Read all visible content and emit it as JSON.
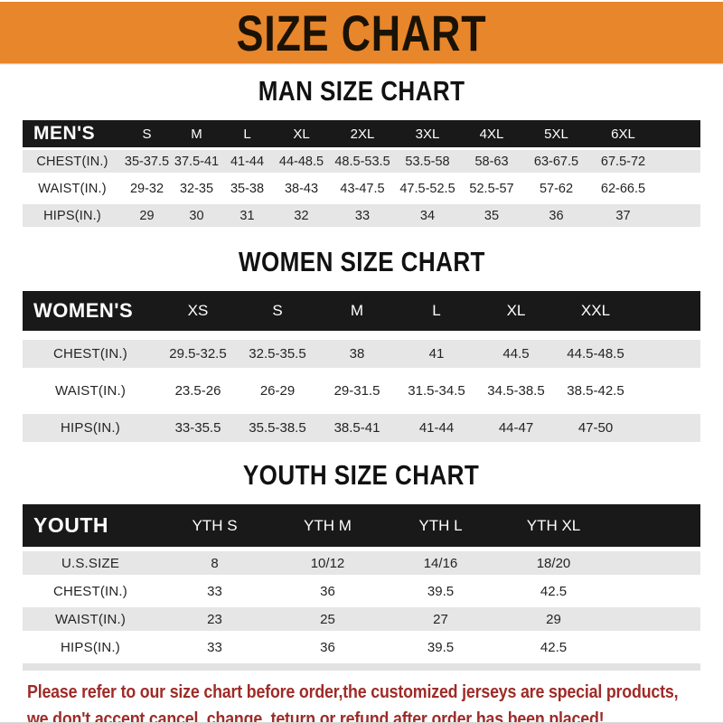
{
  "banner": {
    "title": "SIZE CHART",
    "bg_color": "#E8862B",
    "text_color": "#1B1206"
  },
  "sections": [
    {
      "id": "men",
      "title": "MAN SIZE CHART",
      "corner_label": "MEN'S",
      "columns": [
        "S",
        "M",
        "L",
        "XL",
        "2XL",
        "3XL",
        "4XL",
        "5XL",
        "6XL"
      ],
      "rows": [
        {
          "label": "CHEST(IN.)",
          "values": [
            "35-37.5",
            "37.5-41",
            "41-44",
            "44-48.5",
            "48.5-53.5",
            "53.5-58",
            "58-63",
            "63-67.5",
            "67.5-72"
          ]
        },
        {
          "label": "WAIST(IN.)",
          "values": [
            "29-32",
            "32-35",
            "35-38",
            "38-43",
            "43-47.5",
            "47.5-52.5",
            "52.5-57",
            "57-62",
            "62-66.5"
          ]
        },
        {
          "label": "HIPS(IN.)",
          "values": [
            "29",
            "30",
            "31",
            "32",
            "33",
            "34",
            "35",
            "36",
            "37"
          ]
        }
      ]
    },
    {
      "id": "women",
      "title": "WOMEN SIZE CHART",
      "corner_label": "WOMEN'S",
      "columns": [
        "XS",
        "S",
        "M",
        "L",
        "XL",
        "XXL"
      ],
      "rows": [
        {
          "label": "CHEST(IN.)",
          "values": [
            "29.5-32.5",
            "32.5-35.5",
            "38",
            "41",
            "44.5",
            "44.5-48.5"
          ]
        },
        {
          "label": "WAIST(IN.)",
          "values": [
            "23.5-26",
            "26-29",
            "29-31.5",
            "31.5-34.5",
            "34.5-38.5",
            "38.5-42.5"
          ]
        },
        {
          "label": "HIPS(IN.)",
          "values": [
            "33-35.5",
            "35.5-38.5",
            "38.5-41",
            "41-44",
            "44-47",
            "47-50"
          ]
        }
      ]
    },
    {
      "id": "youth",
      "title": "YOUTH SIZE CHART",
      "corner_label": "YOUTH",
      "columns": [
        "YTH S",
        "YTH M",
        "YTH L",
        "YTH XL"
      ],
      "rows": [
        {
          "label": "U.S.SIZE",
          "values": [
            "8",
            "10/12",
            "14/16",
            "18/20"
          ]
        },
        {
          "label": "CHEST(IN.)",
          "values": [
            "33",
            "36",
            "39.5",
            "42.5"
          ]
        },
        {
          "label": "WAIST(IN.)",
          "values": [
            "23",
            "25",
            "27",
            "29"
          ]
        },
        {
          "label": "HIPS(IN.)",
          "values": [
            "33",
            "36",
            "39.5",
            "42.5"
          ]
        }
      ]
    }
  ],
  "footer": {
    "line1": "Please refer to our size chart before order,the customized jerseys are special products,",
    "line2": "we don't accept cancel, change, teturn or refund after order has been placed!",
    "text_color": "#9E2B27"
  },
  "colors": {
    "header_band": "#191919",
    "row_stripe": "#E6E6E6"
  }
}
